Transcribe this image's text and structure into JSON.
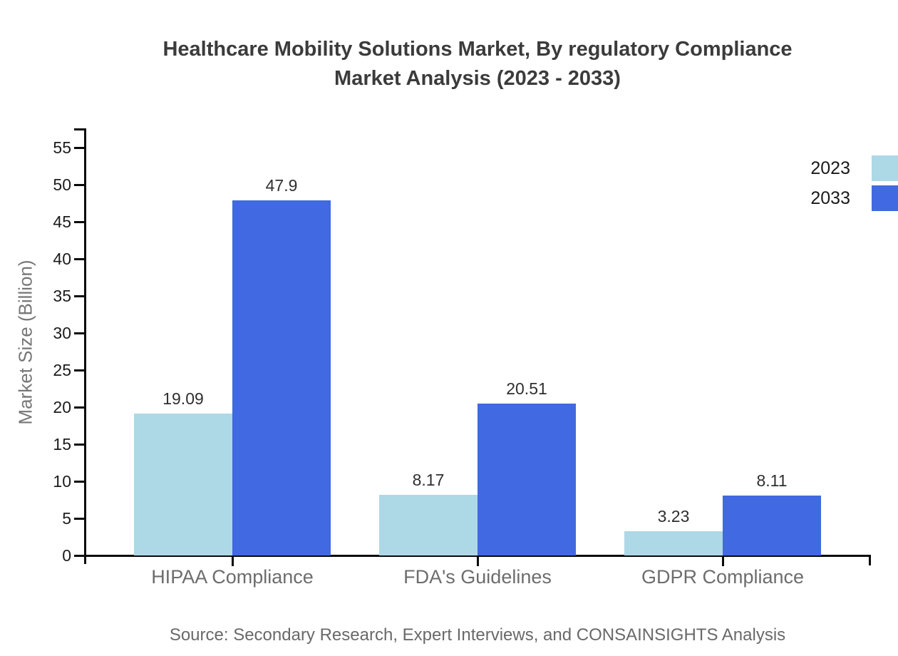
{
  "title": {
    "line1": "Healthcare Mobility Solutions Market, By regulatory Compliance",
    "line2": "Market Analysis (2023 - 2033)"
  },
  "source": "Source: Secondary Research, Expert Interviews, and CONSAINSIGHTS Analysis",
  "chart_data": {
    "type": "bar",
    "categories": [
      "HIPAA Compliance",
      "FDA's Guidelines",
      "GDPR Compliance"
    ],
    "series": [
      {
        "name": "2023",
        "color": "#ADD8E6",
        "values": [
          19.09,
          8.17,
          3.23
        ]
      },
      {
        "name": "2033",
        "color": "#4169E1",
        "values": [
          47.9,
          20.51,
          8.11
        ]
      }
    ],
    "value_labels": [
      [
        "19.09",
        "8.17",
        "3.23"
      ],
      [
        "47.9",
        "20.51",
        "8.11"
      ]
    ],
    "xlabel": "",
    "ylabel": "Market Size (Billion)",
    "ylim": [
      0,
      55
    ],
    "yticks": [
      0,
      5,
      10,
      15,
      20,
      25,
      30,
      35,
      40,
      45,
      50,
      55
    ],
    "grid": false,
    "legend_position": "top-right"
  }
}
